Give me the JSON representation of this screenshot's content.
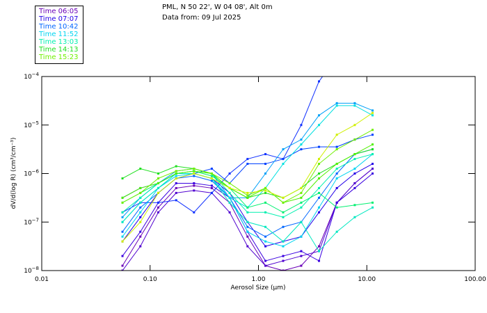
{
  "header": {
    "title_line1": "PML, N 50 22', W 04 08', Alt 0m",
    "title_line2": "Data from: 09 Jul 2025"
  },
  "chart_data": {
    "type": "line",
    "xscale": "log",
    "yscale": "log",
    "xlabel": "Aerosol Size (µm)",
    "ylabel": "dV/d(log R) (cm³/cm⁻³)",
    "xlim": [
      0.01,
      100
    ],
    "ylim": [
      1e-08,
      0.0001
    ],
    "xticks": [
      "0.01",
      "0.10",
      "1.00",
      "10.00",
      "100.00"
    ],
    "xtick_values": [
      0.01,
      0.1,
      1,
      10,
      100
    ],
    "ytick_exponents": [
      -4,
      -5,
      -6,
      -7,
      -8
    ],
    "legend_placement": "top-left outside",
    "legend": [
      {
        "label": "Time 06:05",
        "color": "#6a00b8"
      },
      {
        "label": "Time 07:07",
        "color": "#2400e8"
      },
      {
        "label": "Time 10:42",
        "color": "#0066ff"
      },
      {
        "label": "Time 11:52",
        "color": "#00d4f0"
      },
      {
        "label": "Time 13:03",
        "color": "#00f0b0"
      },
      {
        "label": "Time 14:13",
        "color": "#20e020"
      },
      {
        "label": "Time 15:23",
        "color": "#70f000"
      }
    ],
    "x": [
      0.0556,
      0.0813,
      0.119,
      0.174,
      0.254,
      0.371,
      0.542,
      0.793,
      1.16,
      1.69,
      2.48,
      3.62,
      5.29,
      7.74,
      11.3
    ],
    "y_units": "log10 of dV/d(log R)",
    "series": [
      {
        "name": "Time 06:05",
        "color": "#6a00b8",
        "y_log10": [
          -7.9,
          -7.3,
          -6.7,
          -6.3,
          -6.25,
          -6.3,
          -6.6,
          -7.3,
          -7.9,
          -8.0,
          -7.9,
          -7.5,
          -6.6,
          -6.2,
          -5.9
        ]
      },
      {
        "name": "",
        "color": "#5000d0",
        "y_log10": [
          -8.0,
          -7.5,
          -6.8,
          -6.4,
          -6.35,
          -6.4,
          -6.8,
          -7.5,
          -7.9,
          -7.8,
          -7.7,
          -7.6,
          -6.6,
          -6.2,
          -5.9
        ]
      },
      {
        "name": "",
        "color": "#3a00e0",
        "y_log10": [
          -7.7,
          -7.2,
          -6.6,
          -6.2,
          -6.2,
          -6.25,
          -6.5,
          -7.2,
          -7.8,
          -7.7,
          -7.6,
          -7.8,
          -6.6,
          -6.3,
          -6.0
        ]
      },
      {
        "name": "Time 07:07",
        "color": "#2400e8",
        "y_log10": [
          -7.4,
          -6.9,
          -6.4,
          -6.1,
          -6.0,
          -6.1,
          -6.4,
          -7.0,
          -7.5,
          -7.4,
          -7.3,
          -6.8,
          -6.3,
          -6.0,
          -5.8
        ]
      },
      {
        "name": "",
        "color": "#1030ff",
        "y_log10": [
          -6.8,
          -6.6,
          -6.6,
          -6.55,
          -6.8,
          -6.4,
          -6.0,
          -5.7,
          -5.6,
          -5.7,
          -5.0,
          -4.1,
          -3.6,
          -3.5,
          -3.5
        ]
      },
      {
        "name": "",
        "color": "#0040ff",
        "y_log10": [
          -6.5,
          -6.3,
          -6.2,
          -6.0,
          -6.0,
          -5.9,
          -6.2,
          -5.8,
          -5.8,
          -5.7,
          -5.5,
          -5.45,
          -5.45,
          -5.3,
          -5.2
        ]
      },
      {
        "name": "Time 10:42",
        "color": "#0066ff",
        "y_log10": [
          -7.2,
          -6.7,
          -6.4,
          -6.1,
          -6.05,
          -6.15,
          -6.5,
          -7.1,
          -7.3,
          -7.1,
          -7.0,
          -6.5,
          -6.0,
          -5.6,
          -5.5
        ]
      },
      {
        "name": "",
        "color": "#00a0f8",
        "y_log10": [
          -6.9,
          -6.5,
          -6.2,
          -5.95,
          -5.9,
          -6.0,
          -6.5,
          -6.5,
          -6.0,
          -5.5,
          -5.3,
          -4.8,
          -4.55,
          -4.55,
          -4.7
        ]
      },
      {
        "name": "Time 11:52",
        "color": "#00d4f0",
        "y_log10": [
          -7.3,
          -6.8,
          -6.3,
          -6.05,
          -6.0,
          -6.1,
          -6.5,
          -7.2,
          -7.4,
          -7.5,
          -7.3,
          -6.7,
          -6.1,
          -5.9,
          -5.6
        ]
      },
      {
        "name": "",
        "color": "#00e0e0",
        "y_log10": [
          -7.0,
          -6.6,
          -6.3,
          -6.0,
          -6.0,
          -6.1,
          -6.5,
          -6.7,
          -6.3,
          -5.8,
          -5.4,
          -5.0,
          -4.6,
          -4.6,
          -4.8
        ]
      },
      {
        "name": "",
        "color": "#00e8c0",
        "y_log10": [
          -7.0,
          -6.6,
          -6.3,
          -6.0,
          -6.0,
          -6.1,
          -6.6,
          -7.0,
          -7.1,
          -7.4,
          -7.0,
          -7.6,
          -7.2,
          -6.9,
          -6.7
        ]
      },
      {
        "name": "Time 13:03",
        "color": "#00f0b0",
        "y_log10": [
          -6.8,
          -6.5,
          -6.2,
          -6.0,
          -5.95,
          -6.0,
          -6.4,
          -6.8,
          -6.8,
          -6.9,
          -6.7,
          -6.3,
          -5.9,
          -5.7,
          -5.6
        ]
      },
      {
        "name": "",
        "color": "#00f070",
        "y_log10": [
          -6.6,
          -6.4,
          -6.2,
          -6.0,
          -5.95,
          -6.05,
          -6.3,
          -6.7,
          -6.6,
          -6.8,
          -6.6,
          -6.4,
          -6.7,
          -6.65,
          -6.6
        ]
      },
      {
        "name": "Time 14:13",
        "color": "#20e020",
        "y_log10": [
          -6.1,
          -5.9,
          -6.0,
          -5.85,
          -5.9,
          -6.0,
          -6.3,
          -6.5,
          -6.4,
          -6.5,
          -6.3,
          -6.0,
          -5.8,
          -5.6,
          -5.5
        ]
      },
      {
        "name": "",
        "color": "#50f000",
        "y_log10": [
          -6.5,
          -6.3,
          -6.2,
          -6.0,
          -5.95,
          -6.0,
          -6.3,
          -6.5,
          -6.3,
          -6.6,
          -6.5,
          -6.1,
          -5.8,
          -5.6,
          -5.4
        ]
      },
      {
        "name": "Time 15:23",
        "color": "#70f000",
        "y_log10": [
          -6.6,
          -6.4,
          -6.1,
          -5.95,
          -5.9,
          -6.0,
          -6.2,
          -6.45,
          -6.3,
          -6.6,
          -6.4,
          -5.8,
          -5.5,
          -5.3,
          -5.1
        ]
      },
      {
        "name": "",
        "color": "#d0f000",
        "y_log10": [
          -7.4,
          -7.0,
          -6.4,
          -6.1,
          -6.0,
          -6.1,
          -6.3,
          -6.4,
          -6.35,
          -6.5,
          -6.3,
          -5.7,
          -5.2,
          -5.0,
          -4.75
        ]
      }
    ]
  }
}
